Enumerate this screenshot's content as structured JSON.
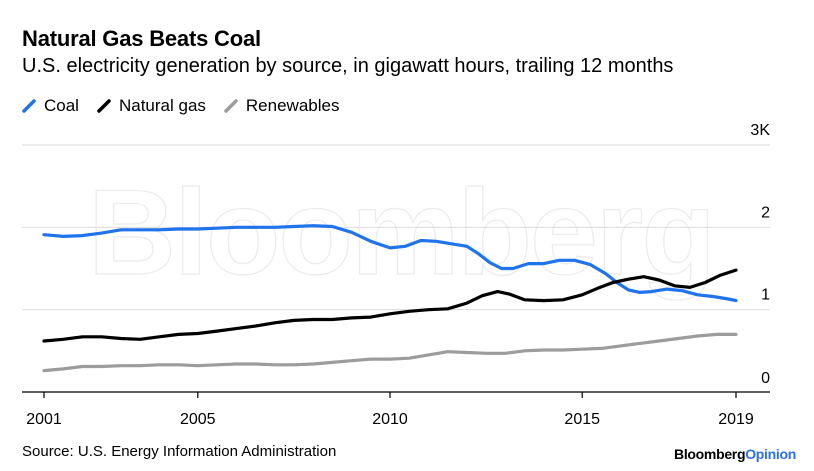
{
  "header": {
    "title": "Natural Gas Beats Coal",
    "subtitle": "U.S. electricity generation by source, in gigawatt hours, trailing 12 months"
  },
  "legend": [
    {
      "label": "Coal",
      "color": "#1f73ec"
    },
    {
      "label": "Natural gas",
      "color": "#000000"
    },
    {
      "label": "Renewables",
      "color": "#9c9c9c"
    }
  ],
  "footer": {
    "source": "Source: U.S. Energy Information Administration",
    "brand_part1": "Bloomberg",
    "brand_part2": "Opinion"
  },
  "watermark": "Bloomberg",
  "chart_data": {
    "type": "line",
    "xlim": [
      2001,
      2019
    ],
    "ylim": [
      0,
      3
    ],
    "x_ticks": [
      {
        "value": 2001,
        "label": "2001"
      },
      {
        "value": 2005,
        "label": "2005"
      },
      {
        "value": 2010,
        "label": "2010"
      },
      {
        "value": 2015,
        "label": "2015"
      },
      {
        "value": 2019,
        "label": "2019"
      }
    ],
    "y_ticks": [
      {
        "value": 0,
        "label": "0"
      },
      {
        "value": 1,
        "label": "1"
      },
      {
        "value": 2,
        "label": "2"
      },
      {
        "value": 3,
        "label": "3K"
      }
    ],
    "grid": "horizontal",
    "legend_position": "top-left",
    "series": [
      {
        "name": "Coal",
        "color": "#1f73ec",
        "points": [
          [
            2001.0,
            1.91
          ],
          [
            2001.5,
            1.89
          ],
          [
            2002.0,
            1.9
          ],
          [
            2002.5,
            1.93
          ],
          [
            2003.0,
            1.97
          ],
          [
            2003.5,
            1.97
          ],
          [
            2004.0,
            1.97
          ],
          [
            2004.5,
            1.98
          ],
          [
            2005.0,
            1.98
          ],
          [
            2005.5,
            1.99
          ],
          [
            2006.0,
            2.0
          ],
          [
            2006.5,
            2.0
          ],
          [
            2007.0,
            2.0
          ],
          [
            2007.5,
            2.01
          ],
          [
            2008.0,
            2.02
          ],
          [
            2008.5,
            2.01
          ],
          [
            2009.0,
            1.94
          ],
          [
            2009.5,
            1.83
          ],
          [
            2010.0,
            1.75
          ],
          [
            2010.4,
            1.77
          ],
          [
            2010.8,
            1.84
          ],
          [
            2011.2,
            1.83
          ],
          [
            2011.6,
            1.8
          ],
          [
            2012.0,
            1.77
          ],
          [
            2012.3,
            1.68
          ],
          [
            2012.6,
            1.57
          ],
          [
            2012.9,
            1.5
          ],
          [
            2013.2,
            1.5
          ],
          [
            2013.6,
            1.56
          ],
          [
            2014.0,
            1.56
          ],
          [
            2014.4,
            1.6
          ],
          [
            2014.8,
            1.6
          ],
          [
            2015.2,
            1.55
          ],
          [
            2015.6,
            1.44
          ],
          [
            2015.9,
            1.33
          ],
          [
            2016.2,
            1.24
          ],
          [
            2016.5,
            1.21
          ],
          [
            2016.8,
            1.22
          ],
          [
            2017.2,
            1.25
          ],
          [
            2017.6,
            1.23
          ],
          [
            2018.0,
            1.18
          ],
          [
            2018.4,
            1.16
          ],
          [
            2018.8,
            1.13
          ],
          [
            2019.0,
            1.11
          ]
        ]
      },
      {
        "name": "Natural gas",
        "color": "#000000",
        "points": [
          [
            2001.0,
            0.62
          ],
          [
            2001.5,
            0.64
          ],
          [
            2002.0,
            0.67
          ],
          [
            2002.5,
            0.67
          ],
          [
            2003.0,
            0.65
          ],
          [
            2003.5,
            0.64
          ],
          [
            2004.0,
            0.67
          ],
          [
            2004.5,
            0.7
          ],
          [
            2005.0,
            0.71
          ],
          [
            2005.5,
            0.74
          ],
          [
            2006.0,
            0.77
          ],
          [
            2006.5,
            0.8
          ],
          [
            2007.0,
            0.84
          ],
          [
            2007.5,
            0.87
          ],
          [
            2008.0,
            0.88
          ],
          [
            2008.5,
            0.88
          ],
          [
            2009.0,
            0.9
          ],
          [
            2009.5,
            0.91
          ],
          [
            2010.0,
            0.95
          ],
          [
            2010.5,
            0.98
          ],
          [
            2011.0,
            1.0
          ],
          [
            2011.5,
            1.01
          ],
          [
            2012.0,
            1.08
          ],
          [
            2012.4,
            1.17
          ],
          [
            2012.8,
            1.22
          ],
          [
            2013.1,
            1.19
          ],
          [
            2013.5,
            1.12
          ],
          [
            2014.0,
            1.11
          ],
          [
            2014.5,
            1.12
          ],
          [
            2015.0,
            1.18
          ],
          [
            2015.4,
            1.26
          ],
          [
            2015.8,
            1.33
          ],
          [
            2016.2,
            1.37
          ],
          [
            2016.6,
            1.4
          ],
          [
            2017.0,
            1.36
          ],
          [
            2017.4,
            1.29
          ],
          [
            2017.8,
            1.27
          ],
          [
            2018.2,
            1.33
          ],
          [
            2018.6,
            1.42
          ],
          [
            2019.0,
            1.48
          ]
        ]
      },
      {
        "name": "Renewables",
        "color": "#9c9c9c",
        "points": [
          [
            2001.0,
            0.26
          ],
          [
            2001.5,
            0.28
          ],
          [
            2002.0,
            0.31
          ],
          [
            2002.5,
            0.31
          ],
          [
            2003.0,
            0.32
          ],
          [
            2003.5,
            0.32
          ],
          [
            2004.0,
            0.33
          ],
          [
            2004.5,
            0.33
          ],
          [
            2005.0,
            0.32
          ],
          [
            2005.5,
            0.33
          ],
          [
            2006.0,
            0.34
          ],
          [
            2006.5,
            0.34
          ],
          [
            2007.0,
            0.33
          ],
          [
            2007.5,
            0.33
          ],
          [
            2008.0,
            0.34
          ],
          [
            2008.5,
            0.36
          ],
          [
            2009.0,
            0.38
          ],
          [
            2009.5,
            0.4
          ],
          [
            2010.0,
            0.4
          ],
          [
            2010.5,
            0.41
          ],
          [
            2011.0,
            0.45
          ],
          [
            2011.5,
            0.49
          ],
          [
            2012.0,
            0.48
          ],
          [
            2012.5,
            0.47
          ],
          [
            2013.0,
            0.47
          ],
          [
            2013.5,
            0.5
          ],
          [
            2014.0,
            0.51
          ],
          [
            2014.5,
            0.51
          ],
          [
            2015.0,
            0.52
          ],
          [
            2015.5,
            0.53
          ],
          [
            2016.0,
            0.56
          ],
          [
            2016.5,
            0.59
          ],
          [
            2017.0,
            0.62
          ],
          [
            2017.5,
            0.65
          ],
          [
            2018.0,
            0.68
          ],
          [
            2018.5,
            0.7
          ],
          [
            2019.0,
            0.7
          ]
        ]
      }
    ]
  }
}
